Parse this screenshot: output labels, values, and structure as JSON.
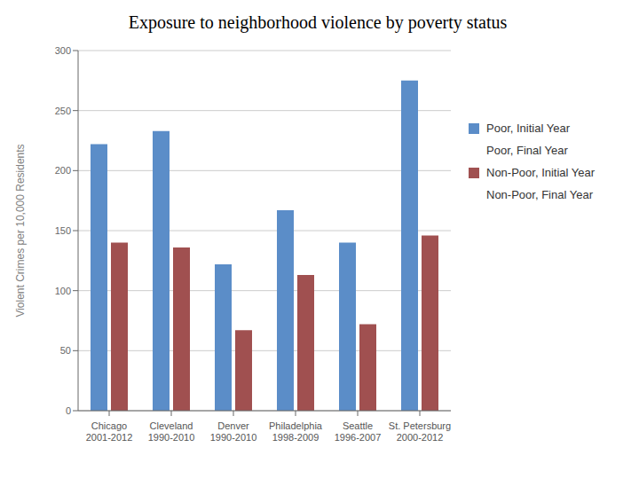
{
  "chart_data": {
    "type": "bar",
    "title": "Exposure to neighborhood violence by poverty status",
    "y_label": "Violent Crimes per 10,000 Residents",
    "categories": [
      "Chicago\n2001-2012",
      "Cleveland\n1990-2010",
      "Denver\n1990-2010",
      "Philadelphia\n1998-2009",
      "Seattle\n1996-2007",
      "St. Petersburg\n2000-2012"
    ],
    "series": [
      {
        "name": "Poor, Initial Year",
        "color": "#5B8DC8",
        "values": [
          222,
          233,
          122,
          167,
          140,
          275
        ]
      },
      {
        "name": "Poor, Final Year",
        "color": "none",
        "values": [
          null,
          null,
          null,
          null,
          null,
          null
        ]
      },
      {
        "name": "Non-Poor, Initial Year",
        "color": "#A05050",
        "values": [
          140,
          136,
          67,
          113,
          72,
          146
        ]
      },
      {
        "name": "Non-Poor, Final Year",
        "color": "none",
        "values": [
          null,
          null,
          null,
          null,
          null,
          null
        ]
      }
    ],
    "ylim": [
      0,
      300
    ],
    "yticks": [
      0,
      50,
      100,
      150,
      200,
      250,
      300
    ],
    "grid": true,
    "legend": "right"
  }
}
